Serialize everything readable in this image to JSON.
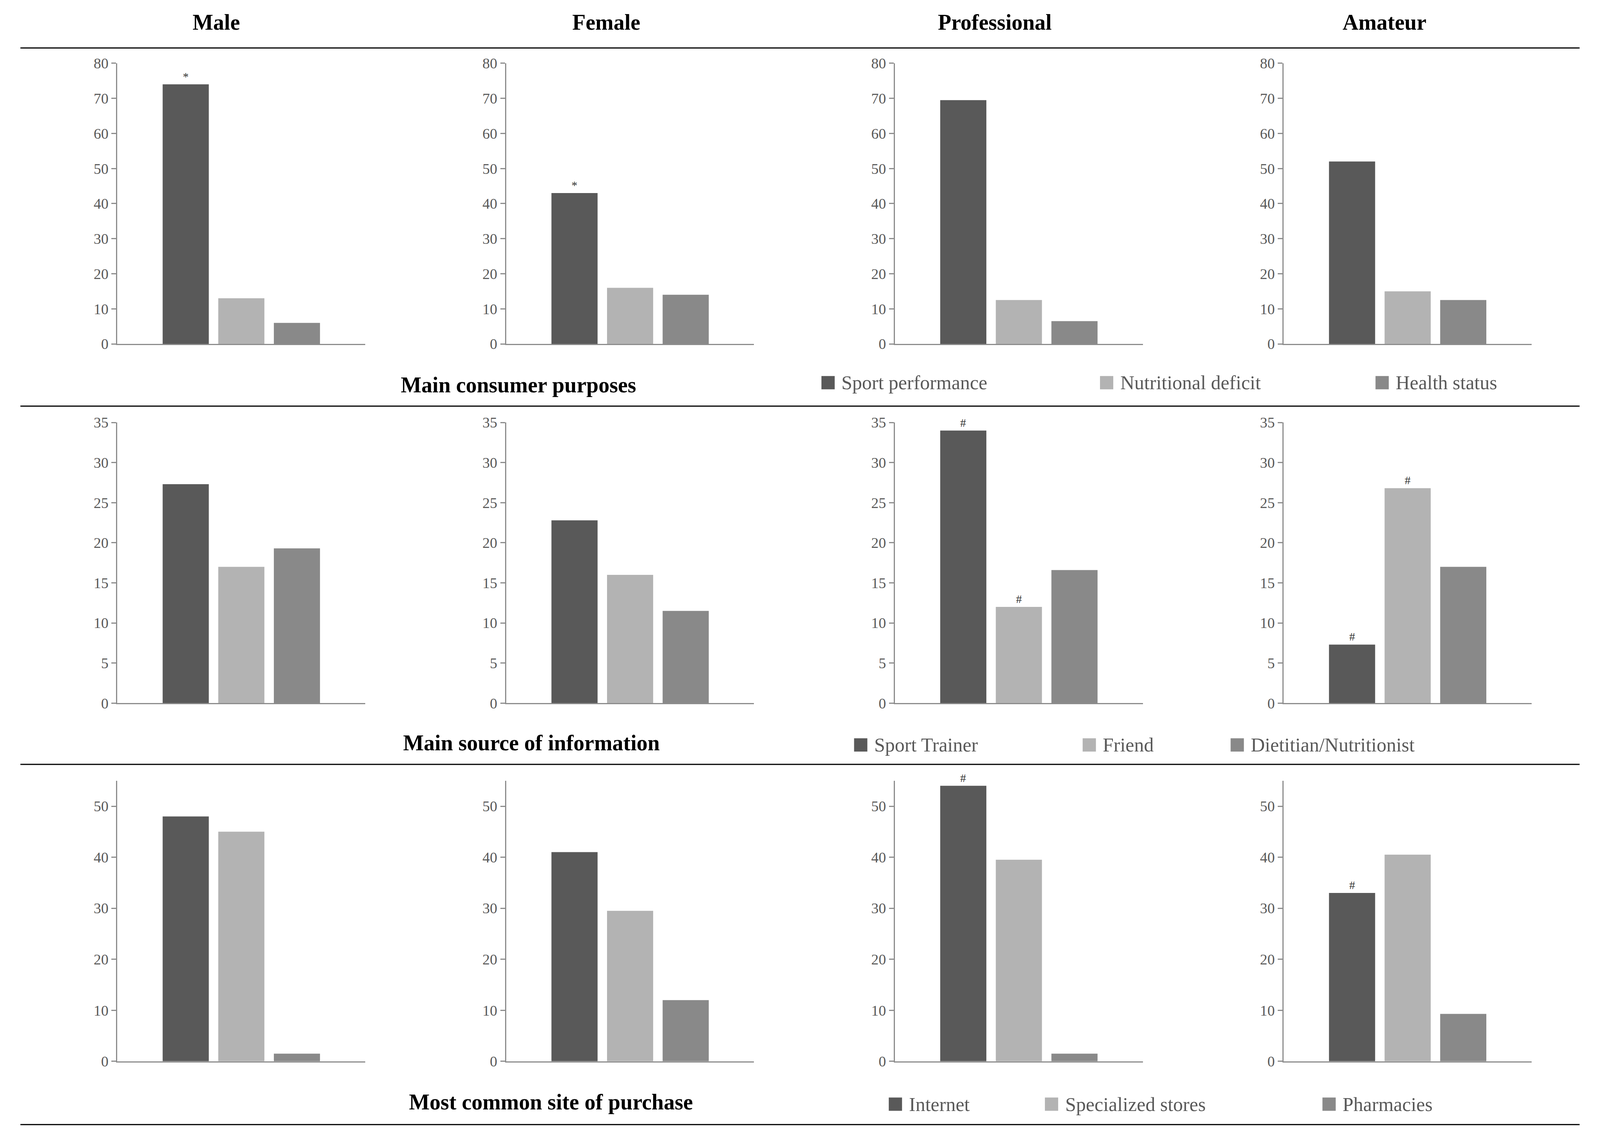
{
  "chart_data": {
    "type": "bar",
    "tick_labels": "y",
    "columns": [
      "Male",
      "Female",
      "Professional",
      "Amateur"
    ],
    "rows": [
      {
        "title": "Main consumer purposes",
        "categories": [
          "Sport performance",
          "Nutritional deficit",
          "Health status"
        ],
        "colors": [
          "#595959",
          "#b3b3b3",
          "#898989"
        ],
        "ylim": [
          0,
          80
        ],
        "yticks": [
          0,
          10,
          20,
          30,
          40,
          50,
          60,
          70,
          80
        ],
        "panels": [
          {
            "values": [
              74,
              13,
              6
            ],
            "annotations": [
              {
                "category": "Sport performance",
                "text": "*"
              }
            ]
          },
          {
            "values": [
              43,
              16,
              14
            ],
            "annotations": [
              {
                "category": "Sport performance",
                "text": "*"
              }
            ]
          },
          {
            "values": [
              69.5,
              12.5,
              6.5
            ]
          },
          {
            "values": [
              52,
              15,
              12.5
            ]
          }
        ]
      },
      {
        "title": "Main source of information",
        "categories": [
          "Sport Trainer",
          "Friend",
          "Dietitian/Nutritionist"
        ],
        "colors": [
          "#595959",
          "#b3b3b3",
          "#898989"
        ],
        "ylim": [
          0,
          35
        ],
        "yticks": [
          0,
          5,
          10,
          15,
          20,
          25,
          30,
          35
        ],
        "panels": [
          {
            "values": [
              27.3,
              17,
              19.3
            ]
          },
          {
            "values": [
              22.8,
              16,
              11.5
            ]
          },
          {
            "values": [
              34,
              12,
              16.6
            ],
            "annotations": [
              {
                "category": "Sport Trainer",
                "text": "#"
              },
              {
                "category": "Friend",
                "text": "#"
              }
            ]
          },
          {
            "values": [
              7.3,
              26.8,
              17
            ],
            "annotations": [
              {
                "category": "Sport Trainer",
                "text": "#"
              },
              {
                "category": "Friend",
                "text": "#"
              }
            ]
          }
        ]
      },
      {
        "title": "Most common site of purchase",
        "categories": [
          "Internet",
          "Specialized stores",
          "Pharmacies"
        ],
        "colors": [
          "#595959",
          "#b3b3b3",
          "#898989"
        ],
        "ylim": [
          0,
          55
        ],
        "yticks": [
          0,
          10,
          20,
          30,
          40,
          50
        ],
        "panels": [
          {
            "values": [
              48,
              45,
              1.5
            ]
          },
          {
            "values": [
              41,
              29.5,
              12
            ]
          },
          {
            "values": [
              54,
              39.5,
              1.5
            ],
            "annotations": [
              {
                "category": "Internet",
                "text": "#"
              }
            ]
          },
          {
            "values": [
              33,
              40.5,
              9.3
            ],
            "annotations": [
              {
                "category": "Internet",
                "text": "#"
              }
            ]
          }
        ]
      }
    ]
  }
}
